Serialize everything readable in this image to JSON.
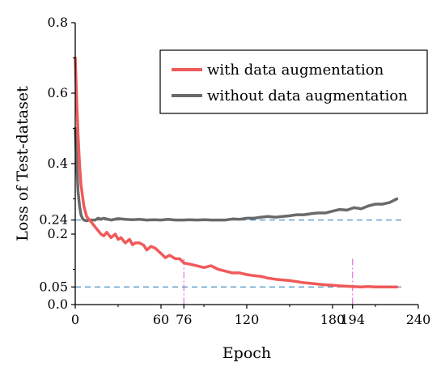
{
  "chart_data": {
    "type": "line",
    "title": "",
    "xlabel": "Epoch",
    "ylabel": "Loss of Test-dataset",
    "xlim": [
      0,
      240
    ],
    "ylim": [
      0,
      0.8
    ],
    "x_ticks": [
      "0",
      "60",
      "76",
      "120",
      "180",
      "194",
      "240"
    ],
    "x_tick_values": [
      0,
      60,
      76,
      120,
      180,
      194,
      240
    ],
    "y_ticks": [
      "0.0",
      "0.05",
      "0.2",
      "0.24",
      "0.4",
      "0.6",
      "0.8"
    ],
    "y_tick_values": [
      0,
      0.05,
      0.2,
      0.24,
      0.4,
      0.6,
      0.8
    ],
    "legend_position": "top-right",
    "grid": false,
    "reference_lines": {
      "horizontal": [
        {
          "y": 0.24,
          "color": "#4A90C8",
          "style": "dashed"
        },
        {
          "y": 0.05,
          "color": "#4A90C8",
          "style": "dashed"
        }
      ],
      "vertical": [
        {
          "x": 76,
          "color": "#E070E0",
          "style": "dash-dot"
        },
        {
          "x": 194,
          "color": "#E070E0",
          "style": "dash-dot"
        }
      ]
    },
    "series": [
      {
        "name": "with data augmentation",
        "color": "#F05A5A",
        "x": [
          0,
          1,
          2,
          3,
          4,
          6,
          8,
          10,
          12,
          14,
          16,
          18,
          20,
          22,
          25,
          28,
          30,
          32,
          35,
          38,
          40,
          42,
          45,
          48,
          50,
          53,
          56,
          60,
          63,
          66,
          70,
          73,
          76,
          80,
          85,
          90,
          95,
          100,
          105,
          110,
          115,
          120,
          125,
          130,
          135,
          140,
          145,
          150,
          155,
          160,
          165,
          170,
          175,
          180,
          185,
          190,
          194,
          200,
          205,
          210,
          215,
          220,
          225
        ],
        "y": [
          0.7,
          0.58,
          0.48,
          0.4,
          0.34,
          0.28,
          0.25,
          0.24,
          0.23,
          0.22,
          0.21,
          0.2,
          0.195,
          0.205,
          0.19,
          0.2,
          0.185,
          0.19,
          0.175,
          0.185,
          0.17,
          0.175,
          0.175,
          0.168,
          0.155,
          0.165,
          0.16,
          0.145,
          0.133,
          0.14,
          0.13,
          0.13,
          0.118,
          0.115,
          0.11,
          0.105,
          0.11,
          0.1,
          0.095,
          0.09,
          0.09,
          0.085,
          0.082,
          0.08,
          0.075,
          0.072,
          0.07,
          0.068,
          0.065,
          0.062,
          0.06,
          0.058,
          0.056,
          0.055,
          0.053,
          0.052,
          0.051,
          0.05,
          0.051,
          0.05,
          0.05,
          0.05,
          0.05
        ]
      },
      {
        "name": "without data augmentation",
        "color": "#6A6A6A",
        "x": [
          0,
          1,
          2,
          3,
          4,
          5,
          6,
          8,
          10,
          12,
          14,
          16,
          18,
          20,
          25,
          30,
          35,
          40,
          45,
          50,
          55,
          60,
          65,
          70,
          76,
          80,
          85,
          90,
          95,
          100,
          105,
          110,
          115,
          120,
          125,
          130,
          135,
          140,
          145,
          150,
          155,
          160,
          165,
          170,
          175,
          180,
          185,
          190,
          195,
          200,
          205,
          210,
          215,
          220,
          225
        ],
        "y": [
          0.5,
          0.4,
          0.32,
          0.28,
          0.255,
          0.245,
          0.24,
          0.238,
          0.24,
          0.24,
          0.24,
          0.245,
          0.242,
          0.245,
          0.24,
          0.244,
          0.242,
          0.241,
          0.242,
          0.24,
          0.241,
          0.24,
          0.242,
          0.24,
          0.24,
          0.241,
          0.24,
          0.241,
          0.24,
          0.24,
          0.24,
          0.243,
          0.242,
          0.245,
          0.245,
          0.248,
          0.25,
          0.248,
          0.25,
          0.252,
          0.255,
          0.255,
          0.258,
          0.26,
          0.26,
          0.265,
          0.27,
          0.268,
          0.275,
          0.272,
          0.28,
          0.285,
          0.285,
          0.29,
          0.3
        ]
      }
    ]
  }
}
